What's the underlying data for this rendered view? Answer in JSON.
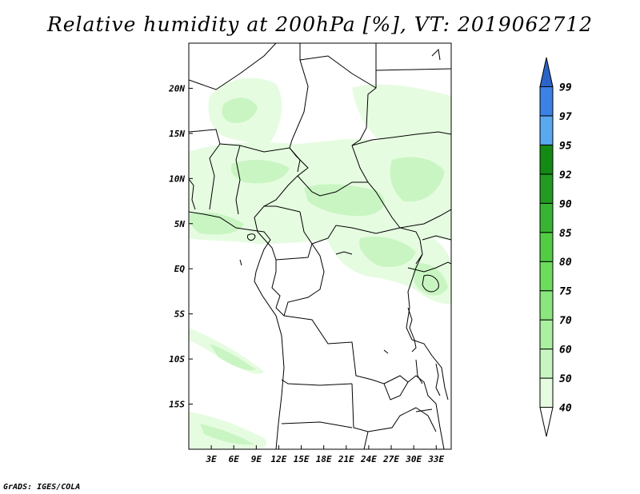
{
  "title": "Relative humidity at 200hPa [%], VT: 2019062712",
  "credit": "GrADS: IGES/COLA",
  "map": {
    "lon_range": [
      0,
      35
    ],
    "lat_range": [
      -20,
      25
    ],
    "lon_ticks": [
      {
        "value": 3,
        "label": "3E"
      },
      {
        "value": 6,
        "label": "6E"
      },
      {
        "value": 9,
        "label": "9E"
      },
      {
        "value": 12,
        "label": "12E"
      },
      {
        "value": 15,
        "label": "15E"
      },
      {
        "value": 18,
        "label": "18E"
      },
      {
        "value": 21,
        "label": "21E"
      },
      {
        "value": 24,
        "label": "24E"
      },
      {
        "value": 27,
        "label": "27E"
      },
      {
        "value": 30,
        "label": "30E"
      },
      {
        "value": 33,
        "label": "33E"
      }
    ],
    "lat_ticks": [
      {
        "value": 20,
        "label": "20N"
      },
      {
        "value": 15,
        "label": "15N"
      },
      {
        "value": 10,
        "label": "10N"
      },
      {
        "value": 5,
        "label": "5N"
      },
      {
        "value": 0,
        "label": "EQ"
      },
      {
        "value": -5,
        "label": "5S"
      },
      {
        "value": -10,
        "label": "10S"
      },
      {
        "value": -15,
        "label": "15S"
      }
    ]
  },
  "colorbar": {
    "levels": [
      "40",
      "50",
      "60",
      "70",
      "75",
      "80",
      "85",
      "90",
      "92",
      "95",
      "97",
      "99"
    ],
    "colors": [
      "#ffffff",
      "#e6fce1",
      "#c9f5c2",
      "#aaf0a0",
      "#8ae67d",
      "#6cdc5d",
      "#50cd43",
      "#37b532",
      "#229b22",
      "#138a13",
      "#5aa8ef",
      "#3c82e6",
      "#2a64c8"
    ]
  }
}
